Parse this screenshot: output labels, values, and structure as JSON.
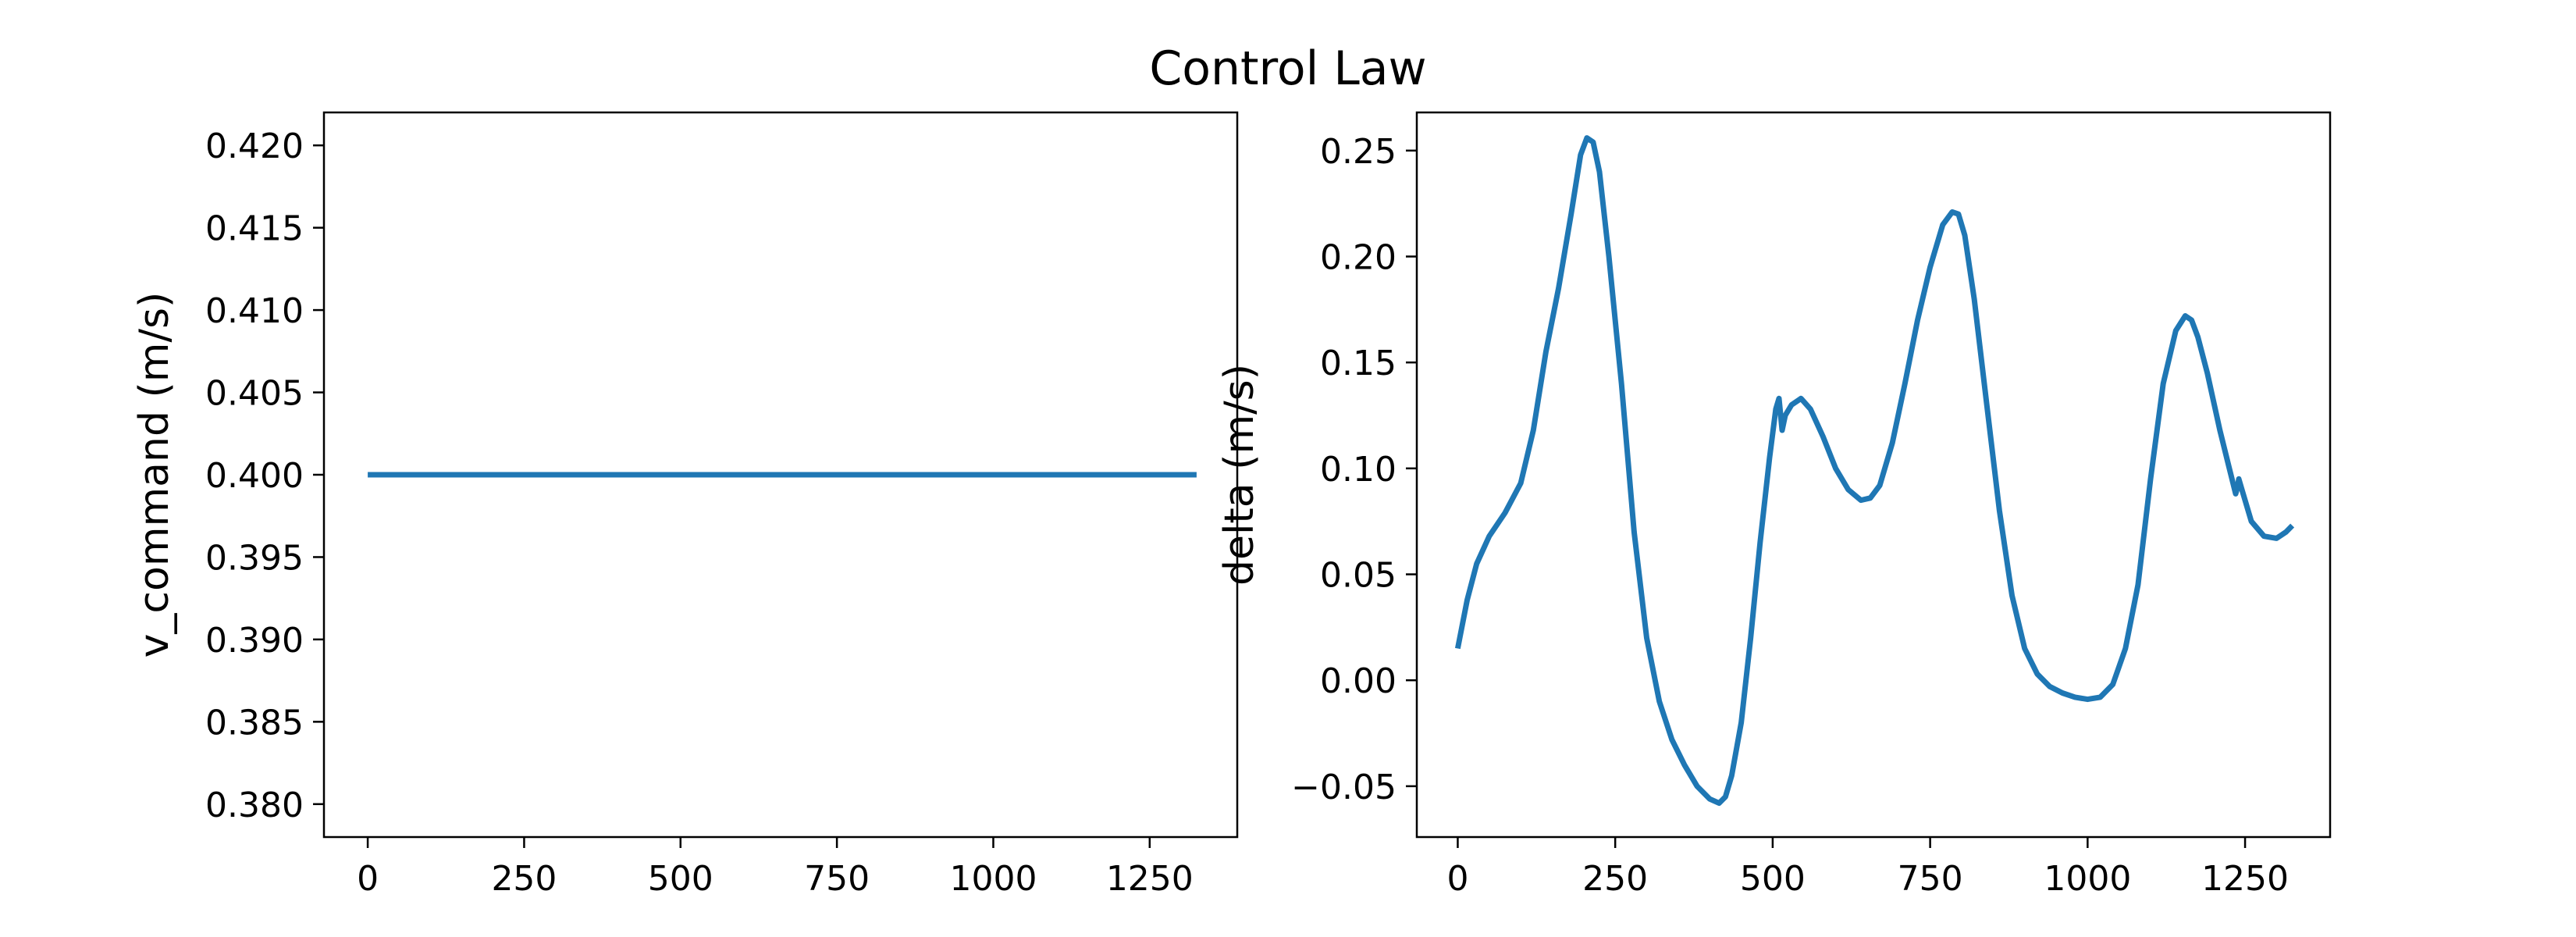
{
  "figure": {
    "title": "Control Law"
  },
  "chart_data": [
    {
      "type": "line",
      "title": "",
      "xlabel": "",
      "ylabel": "v_command (m/s)",
      "xlim": [
        -70,
        1390
      ],
      "ylim": [
        0.378,
        0.422
      ],
      "xticks": [
        0,
        250,
        500,
        750,
        1000,
        1250
      ],
      "xtick_labels": [
        "0",
        "250",
        "500",
        "750",
        "1000",
        "1250"
      ],
      "yticks": [
        0.38,
        0.385,
        0.39,
        0.395,
        0.4,
        0.405,
        0.41,
        0.415,
        0.42
      ],
      "ytick_labels": [
        "0.380",
        "0.385",
        "0.390",
        "0.395",
        "0.400",
        "0.405",
        "0.410",
        "0.415",
        "0.420"
      ],
      "grid": false,
      "color": "#1f77b4",
      "series": [
        {
          "x": [
            0,
            1325
          ],
          "y": [
            0.4,
            0.4
          ]
        }
      ]
    },
    {
      "type": "line",
      "title": "",
      "xlabel": "",
      "ylabel": "delta (m/s)",
      "xlim": [
        -65,
        1385
      ],
      "ylim": [
        -0.074,
        0.268
      ],
      "xticks": [
        0,
        250,
        500,
        750,
        1000,
        1250
      ],
      "xtick_labels": [
        "0",
        "250",
        "500",
        "750",
        "1000",
        "1250"
      ],
      "yticks": [
        -0.05,
        0.0,
        0.05,
        0.1,
        0.15,
        0.2,
        0.25
      ],
      "ytick_labels": [
        "−0.05",
        "0.00",
        "0.05",
        "0.10",
        "0.15",
        "0.20",
        "0.25"
      ],
      "grid": false,
      "color": "#1f77b4",
      "series": [
        {
          "x": [
            0,
            15,
            30,
            50,
            75,
            100,
            120,
            140,
            160,
            180,
            195,
            205,
            215,
            225,
            240,
            260,
            280,
            300,
            320,
            340,
            360,
            380,
            400,
            415,
            425,
            435,
            450,
            465,
            480,
            495,
            505,
            510,
            515,
            520,
            530,
            545,
            560,
            580,
            600,
            620,
            640,
            655,
            670,
            690,
            710,
            730,
            750,
            770,
            785,
            795,
            805,
            820,
            840,
            860,
            880,
            900,
            920,
            940,
            960,
            980,
            1000,
            1020,
            1040,
            1060,
            1080,
            1100,
            1120,
            1140,
            1155,
            1165,
            1175,
            1190,
            1210,
            1225,
            1235,
            1238,
            1240,
            1245,
            1260,
            1280,
            1300,
            1315,
            1325
          ],
          "y": [
            0.015,
            0.038,
            0.055,
            0.068,
            0.079,
            0.093,
            0.118,
            0.155,
            0.185,
            0.22,
            0.248,
            0.256,
            0.254,
            0.24,
            0.2,
            0.14,
            0.07,
            0.02,
            -0.01,
            -0.028,
            -0.04,
            -0.05,
            -0.056,
            -0.058,
            -0.055,
            -0.045,
            -0.02,
            0.02,
            0.065,
            0.105,
            0.128,
            0.133,
            0.118,
            0.125,
            0.13,
            0.133,
            0.128,
            0.115,
            0.1,
            0.09,
            0.085,
            0.086,
            0.092,
            0.112,
            0.14,
            0.17,
            0.195,
            0.215,
            0.221,
            0.22,
            0.21,
            0.18,
            0.13,
            0.08,
            0.04,
            0.015,
            0.003,
            -0.003,
            -0.006,
            -0.008,
            -0.009,
            -0.008,
            -0.002,
            0.015,
            0.045,
            0.095,
            0.14,
            0.165,
            0.172,
            0.17,
            0.162,
            0.145,
            0.118,
            0.1,
            0.088,
            0.091,
            0.095,
            0.09,
            0.075,
            0.068,
            0.067,
            0.07,
            0.073
          ]
        }
      ]
    }
  ]
}
